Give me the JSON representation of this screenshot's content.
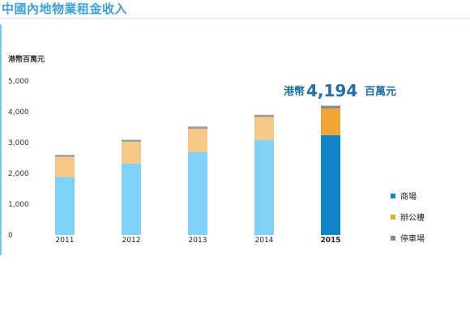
{
  "title": "中國內地物業租金收入",
  "chart_data": {
    "type": "bar",
    "stacked": true,
    "title": "中國內地物業租金收入",
    "ylabel": "港幣百萬元",
    "ylim": [
      0,
      5000
    ],
    "yticks": [
      "0",
      "1,000",
      "2,000",
      "3,000",
      "4,000",
      "5,000"
    ],
    "categories": [
      "2011",
      "2012",
      "2013",
      "2014",
      "2015"
    ],
    "highlight_category": "2015",
    "series": [
      {
        "name": "商場",
        "values": [
          1880,
          2320,
          2690,
          3080,
          3240
        ],
        "color": "#7fd1f6",
        "highlight_color": "#1084c8"
      },
      {
        "name": "辦公樓",
        "values": [
          660,
          710,
          760,
          750,
          870
        ],
        "color": "#f6c98a",
        "highlight_color": "#f0a536"
      },
      {
        "name": "停車場",
        "values": [
          60,
          60,
          70,
          70,
          84
        ],
        "color": "#9a9a9a",
        "highlight_color": "#888888"
      }
    ],
    "annotation": {
      "prefix": "港幣",
      "value": "4,194",
      "suffix": "百萬元"
    },
    "legend_placement": "right"
  }
}
